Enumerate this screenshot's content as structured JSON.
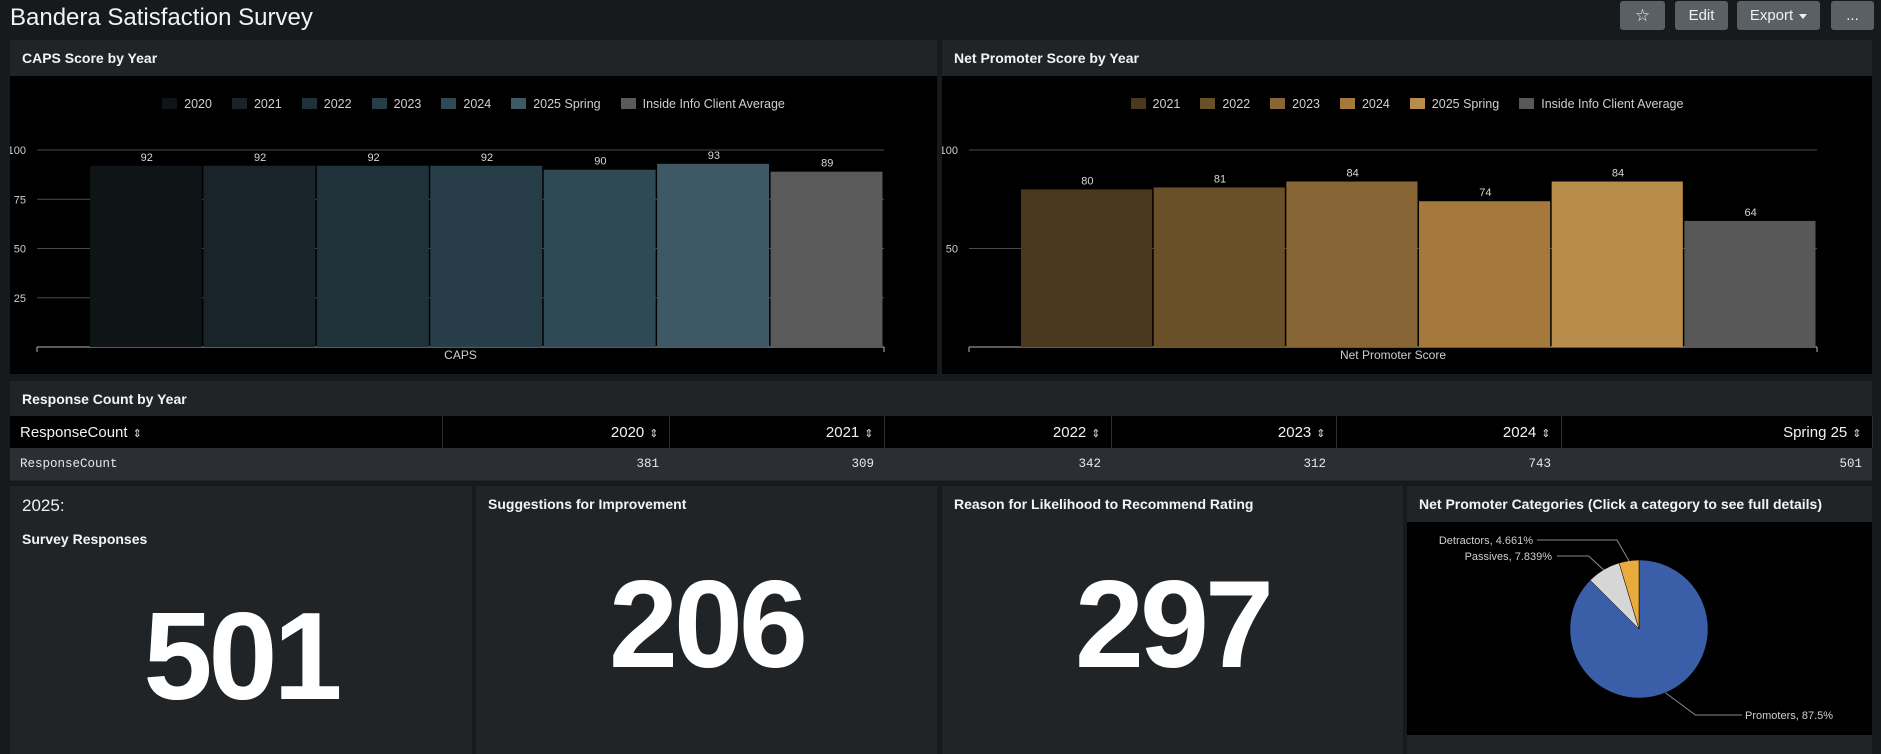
{
  "header": {
    "title": "Bandera Satisfaction Survey",
    "star_icon": "☆",
    "edit_label": "Edit",
    "export_label": "Export",
    "more_label": "..."
  },
  "caps_panel": {
    "title": "CAPS Score by Year"
  },
  "nps_panel": {
    "title": "Net Promoter Score by Year"
  },
  "response_panel": {
    "title": "Response Count by Year",
    "columns": [
      "ResponseCount",
      "2020",
      "2021",
      "2022",
      "2023",
      "2024",
      "Spring 25"
    ],
    "rows": [
      [
        "ResponseCount",
        "381",
        "309",
        "342",
        "312",
        "743",
        "501"
      ]
    ],
    "sort_icon": "⇕"
  },
  "survey_panel": {
    "year_label": "2025:",
    "title": "Survey Responses",
    "value": "501"
  },
  "suggestions_panel": {
    "title": "Suggestions for Improvement",
    "value": "206"
  },
  "reason_panel": {
    "title": "Reason for Likelihood to Recommend Rating",
    "value": "297"
  },
  "categories_panel": {
    "title": "Net Promoter Categories (Click a category to see full details)"
  },
  "chart_data": [
    {
      "type": "bar",
      "xlabel": "CAPS",
      "ylim": [
        0,
        100
      ],
      "yticks": [
        25,
        50,
        75,
        100
      ],
      "legend_position": "top",
      "series": [
        {
          "name": "2020",
          "values": [
            92
          ],
          "color": "#0f1417"
        },
        {
          "name": "2021",
          "values": [
            92
          ],
          "color": "#18242a"
        },
        {
          "name": "2022",
          "values": [
            92
          ],
          "color": "#203239"
        },
        {
          "name": "2023",
          "values": [
            92
          ],
          "color": "#273d47"
        },
        {
          "name": "2024",
          "values": [
            90
          ],
          "color": "#2f4a55"
        },
        {
          "name": "2025 Spring",
          "values": [
            93
          ],
          "color": "#3f5865"
        },
        {
          "name": "Inside Info Client Average",
          "values": [
            89
          ],
          "color": "#5a5a5a"
        }
      ]
    },
    {
      "type": "bar",
      "xlabel": "Net Promoter Score",
      "ylim": [
        0,
        100
      ],
      "yticks": [
        50,
        100
      ],
      "legend_position": "top",
      "series": [
        {
          "name": "2021",
          "values": [
            80
          ],
          "color": "#4a381f"
        },
        {
          "name": "2022",
          "values": [
            81
          ],
          "color": "#6a5029"
        },
        {
          "name": "2023",
          "values": [
            84
          ],
          "color": "#876534"
        },
        {
          "name": "2024",
          "values": [
            74
          ],
          "color": "#a5793c"
        },
        {
          "name": "2025 Spring",
          "values": [
            84
          ],
          "color": "#b88d4b"
        },
        {
          "name": "Inside Info Client Average",
          "values": [
            64
          ],
          "color": "#585858"
        }
      ]
    },
    {
      "type": "pie",
      "slices": [
        {
          "label": "Promoters, 87.5%",
          "value": 87.5,
          "color": "#3a5ea8"
        },
        {
          "label": "Passives, 7.839%",
          "value": 7.839,
          "color": "#d6d6d6"
        },
        {
          "label": "Detractors, 4.661%",
          "value": 4.661,
          "color": "#e8ab3c"
        }
      ]
    }
  ]
}
